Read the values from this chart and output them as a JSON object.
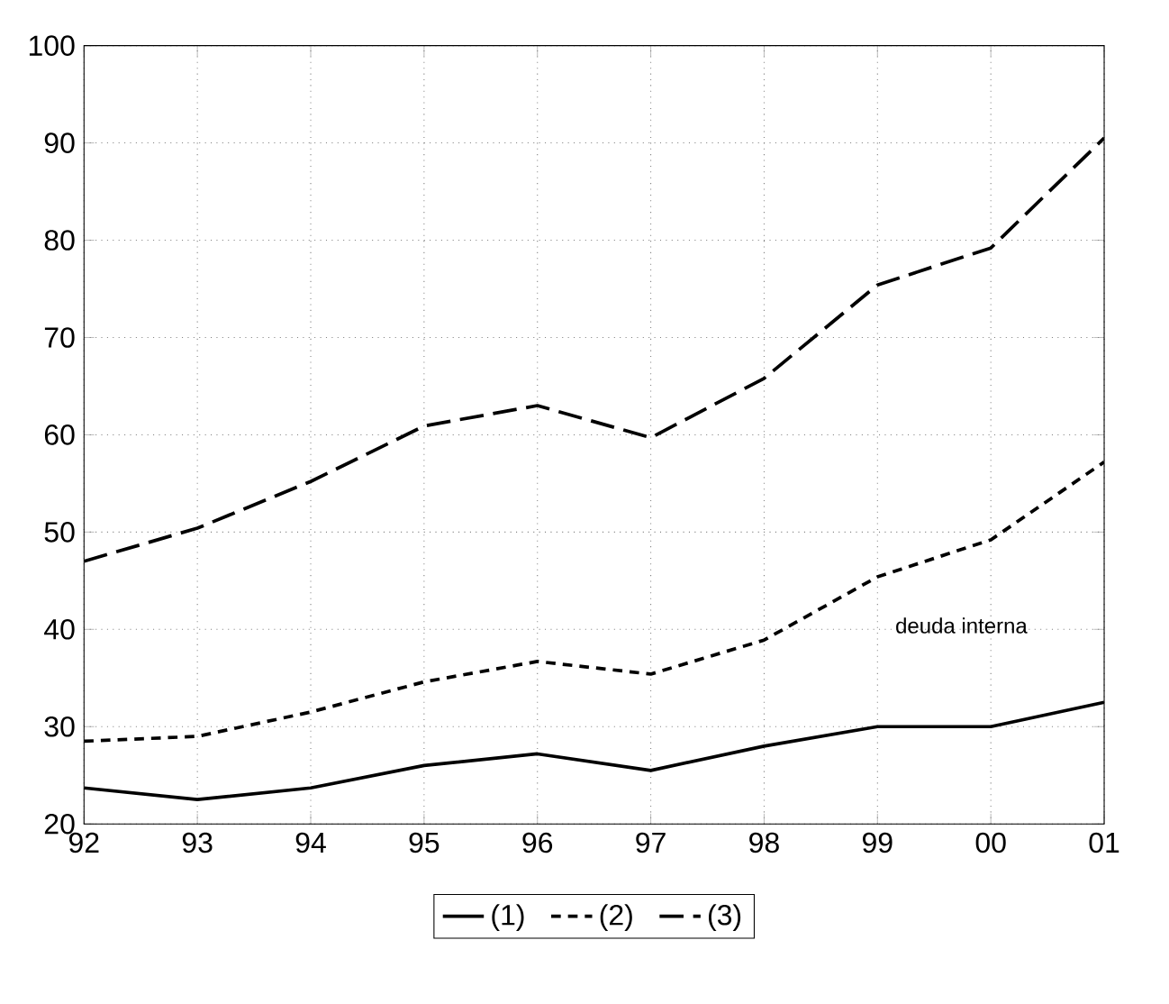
{
  "chart_data": {
    "type": "line",
    "categories": [
      "92",
      "93",
      "94",
      "95",
      "96",
      "97",
      "98",
      "99",
      "00",
      "01"
    ],
    "series": [
      {
        "name": "(1)",
        "color": "#000000",
        "line_style": "solid",
        "values": [
          23.7,
          22.5,
          23.7,
          26,
          27.2,
          25.5,
          28,
          30,
          30,
          32.5
        ]
      },
      {
        "name": "(2)",
        "color": "#000000",
        "line_style": "dashed",
        "values": [
          28.5,
          29,
          31.5,
          34.6,
          36.7,
          35.4,
          38.9,
          45.4,
          49.2,
          57.2
        ]
      },
      {
        "name": "(3)",
        "color": "#000000",
        "line_style": "longdashed",
        "values": [
          47,
          50.4,
          55.2,
          60.9,
          63,
          59.7,
          65.8,
          75.4,
          79.2,
          90.5
        ]
      }
    ],
    "ylim": [
      20,
      100
    ],
    "yticks": [
      20,
      30,
      40,
      50,
      60,
      70,
      80,
      90,
      100
    ],
    "grid": true,
    "legend": "bottom",
    "marker": "none",
    "annotations": [
      "deuda interna"
    ]
  }
}
